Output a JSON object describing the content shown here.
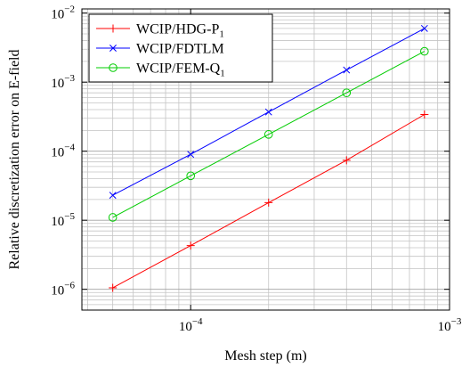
{
  "chart_data": {
    "type": "line",
    "xlabel": "Mesh step (m)",
    "ylabel": "Relative discretization error on E-field",
    "x_scale": "log",
    "y_scale": "log",
    "xlim": [
      3.8e-05,
      0.001
    ],
    "ylim": [
      5e-07,
      0.0115
    ],
    "grid": true,
    "legend_position": "top-left",
    "x_ticks": [
      {
        "value": 0.0001,
        "base": "10",
        "exp": "−4"
      },
      {
        "value": 0.001,
        "base": "10",
        "exp": "−3"
      }
    ],
    "y_ticks": [
      {
        "value": 1e-06,
        "base": "10",
        "exp": "−6"
      },
      {
        "value": 1e-05,
        "base": "10",
        "exp": "−5"
      },
      {
        "value": 0.0001,
        "base": "10",
        "exp": "−4"
      },
      {
        "value": 0.001,
        "base": "10",
        "exp": "−3"
      },
      {
        "value": 0.01,
        "base": "10",
        "exp": "−2"
      }
    ],
    "x": [
      5e-05,
      0.0001,
      0.0002,
      0.0004,
      0.0008
    ],
    "series": [
      {
        "name": "WCIP/HDG-P",
        "name_sub": "1",
        "color": "#ff0000",
        "marker": "plus",
        "values": [
          1.05e-06,
          4.3e-06,
          1.8e-05,
          7.4e-05,
          0.00034
        ]
      },
      {
        "name": "WCIP/FDTLM",
        "name_sub": "",
        "color": "#0000ff",
        "marker": "x",
        "values": [
          2.3e-05,
          9e-05,
          0.00037,
          0.0015,
          0.006
        ]
      },
      {
        "name": "WCIP/FEM-Q",
        "name_sub": "1",
        "color": "#00cc00",
        "marker": "circle",
        "values": [
          1.1e-05,
          4.4e-05,
          0.000175,
          0.0007,
          0.0028
        ]
      }
    ]
  }
}
